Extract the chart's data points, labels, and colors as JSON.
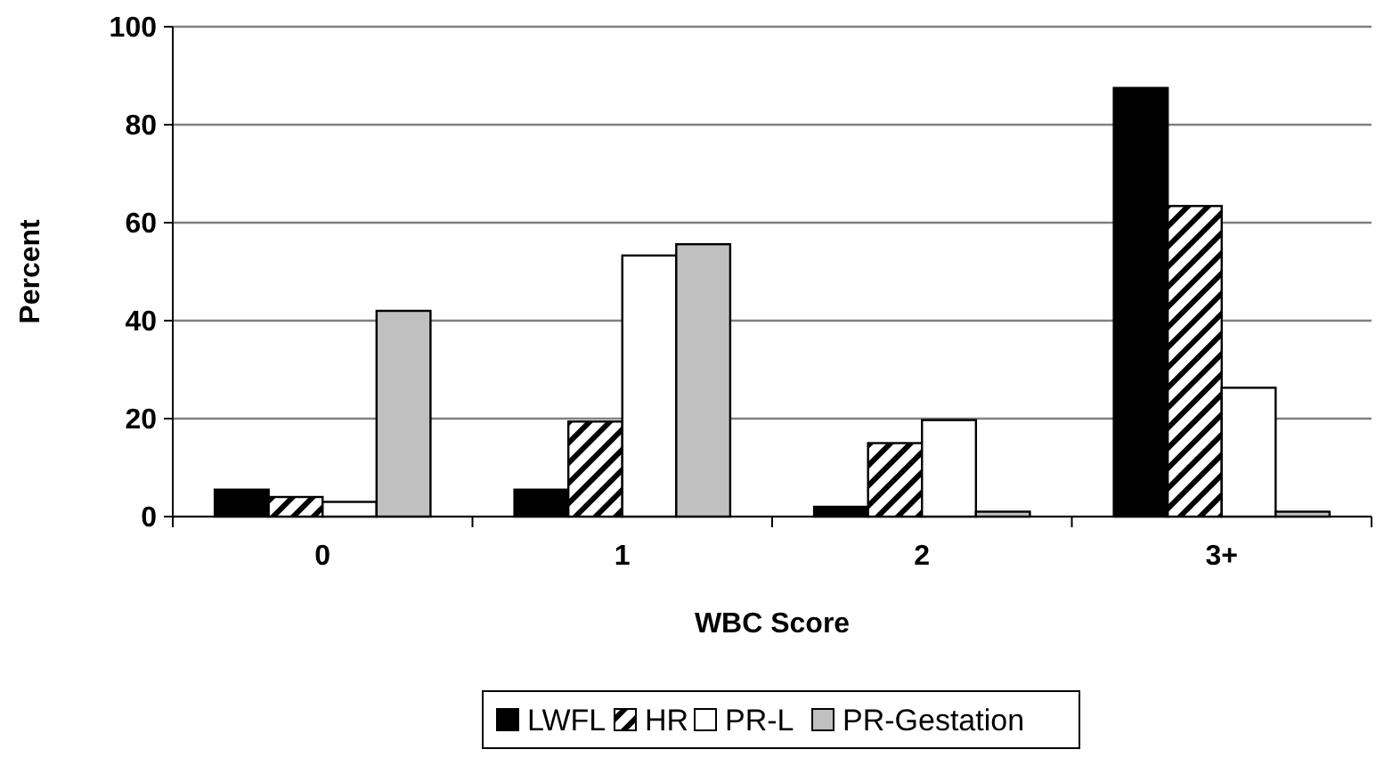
{
  "chart_data": {
    "type": "bar",
    "xlabel": "WBC Score",
    "ylabel": "Percent",
    "categories": [
      "0",
      "1",
      "2",
      "3+"
    ],
    "series": [
      {
        "name": "LWFL",
        "color": "#000000",
        "values": [
          5.5,
          5.5,
          2,
          87.5
        ]
      },
      {
        "name": "HR",
        "color": "#000000",
        "values": [
          4,
          19.4,
          15,
          63.4
        ]
      },
      {
        "name": "PR-L",
        "color": "#ffffff",
        "values": [
          3,
          53.3,
          19.7,
          26.3
        ]
      },
      {
        "name": "PR-Gestation",
        "color": "#c0c0c0",
        "values": [
          42,
          55.6,
          1,
          1
        ]
      }
    ],
    "ylim": [
      0,
      100
    ],
    "yticks": [
      0,
      20,
      40,
      60,
      80,
      100
    ],
    "grid": "y",
    "legend": "bottom"
  }
}
